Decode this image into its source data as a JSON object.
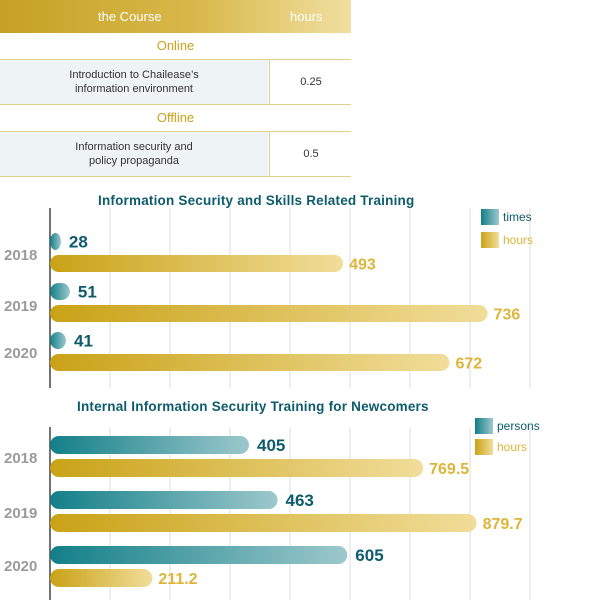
{
  "table": {
    "header": {
      "course": "the Course",
      "hours": "hours"
    },
    "sections": [
      {
        "label": "Online",
        "rows": [
          {
            "course": [
              "Introduction to Chailease’s",
              "information environment"
            ],
            "hours": "0.25"
          }
        ]
      },
      {
        "label": "Offline",
        "rows": [
          {
            "course": [
              "Information security and",
              "policy propaganda"
            ],
            "hours": "0.5"
          }
        ]
      }
    ]
  },
  "colors": {
    "teal": "#1b8a92",
    "gold": "#d9b640",
    "teal_text": "#0d5b6b",
    "gold_text": "#dcb53a",
    "year_text": "#9a9a9a"
  },
  "chart_data": [
    {
      "type": "bar",
      "orientation": "horizontal",
      "title": "Information Security and Skills Related Training",
      "categories": [
        "2018",
        "2019",
        "2020"
      ],
      "legend_position": "top-right",
      "grid": true,
      "series": [
        {
          "name": "times",
          "values": [
            28,
            51,
            41
          ]
        },
        {
          "name": "hours",
          "values": [
            493,
            736,
            672
          ]
        }
      ]
    },
    {
      "type": "bar",
      "orientation": "horizontal",
      "title": "Internal Information Security Training for Newcomers",
      "categories": [
        "2018",
        "2019",
        "2020"
      ],
      "legend_position": "top-right",
      "grid": true,
      "series": [
        {
          "name": "persons",
          "values": [
            405,
            463,
            605
          ]
        },
        {
          "name": "hours",
          "values": [
            "769.5",
            "879.7",
            "211.2"
          ]
        }
      ]
    }
  ]
}
